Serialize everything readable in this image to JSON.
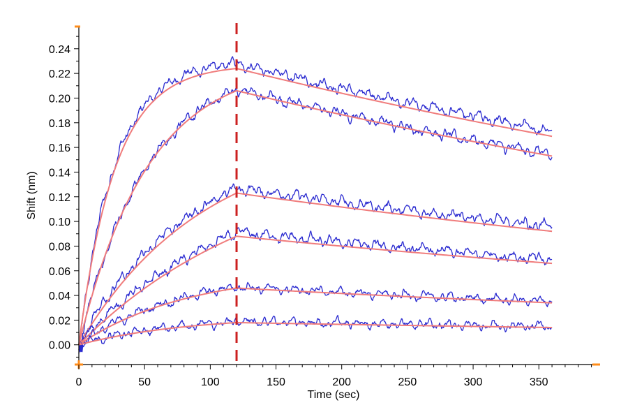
{
  "chart_data": {
    "type": "line",
    "title": "",
    "xlabel": "Time (sec)",
    "ylabel": "Shift (nm)",
    "xlim": [
      0,
      395
    ],
    "ylim": [
      -0.016,
      0.258
    ],
    "x_ticks": [
      0,
      50,
      100,
      150,
      200,
      250,
      300,
      350
    ],
    "x_tick_labels": [
      "0",
      "50",
      "100",
      "150",
      "200",
      "250",
      "300",
      "350"
    ],
    "x_minor_step": 10,
    "y_ticks": [
      0.0,
      0.02,
      0.04,
      0.06,
      0.08,
      0.1,
      0.12,
      0.14,
      0.16,
      0.18,
      0.2,
      0.22,
      0.24
    ],
    "y_tick_labels": [
      "0.00",
      "0.02",
      "0.04",
      "0.06",
      "0.08",
      "0.10",
      "0.12",
      "0.14",
      "0.16",
      "0.18",
      "0.20",
      "0.22",
      "0.24"
    ],
    "y_minor_step": 0.01,
    "association_end": 120,
    "end_time": 360,
    "dissociation_marker": {
      "x": 120,
      "color": "#cc2020",
      "style": "dashed"
    },
    "legend": "none",
    "grid": false,
    "colors": {
      "raw": "#2a2ad0",
      "fit": "#f07c7c",
      "axis": "#000000",
      "accent": "#ff8c1a"
    },
    "series": [
      {
        "name": "curve-1",
        "fit_peak": 0.224,
        "fit_k": 0.036,
        "fit_end": 0.169,
        "raw_offset": 0.004,
        "raw_noise": 0.0035
      },
      {
        "name": "curve-2",
        "fit_peak": 0.206,
        "fit_k": 0.019,
        "fit_end": 0.153,
        "raw_offset": 0.001,
        "raw_noise": 0.0035
      },
      {
        "name": "curve-3",
        "fit_peak": 0.123,
        "fit_k": 0.0105,
        "fit_end": 0.092,
        "raw_offset": 0.004,
        "raw_noise": 0.0035
      },
      {
        "name": "curve-4",
        "fit_peak": 0.088,
        "fit_k": 0.007,
        "fit_end": 0.066,
        "raw_offset": 0.003,
        "raw_noise": 0.0035
      },
      {
        "name": "curve-5",
        "fit_peak": 0.046,
        "fit_k": 0.012,
        "fit_end": 0.034,
        "raw_offset": 0.001,
        "raw_noise": 0.003
      },
      {
        "name": "curve-6",
        "fit_peak": 0.018,
        "fit_k": 0.012,
        "fit_end": 0.014,
        "raw_offset": 0.001,
        "raw_noise": 0.003
      }
    ]
  }
}
